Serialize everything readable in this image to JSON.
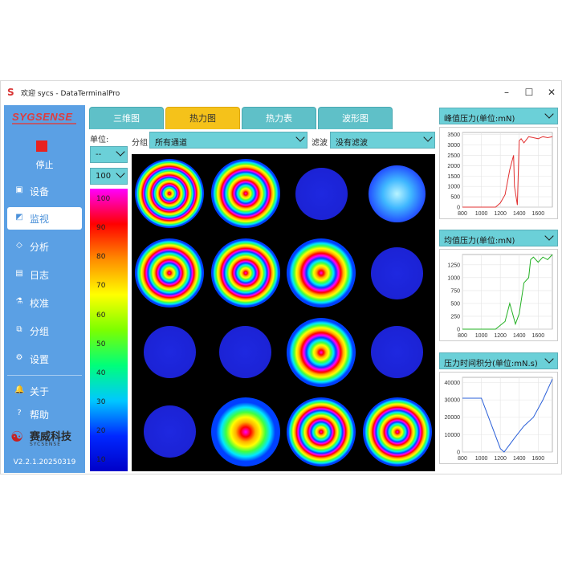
{
  "window": {
    "title": "欢迎 sycs - DataTerminalPro",
    "controls": [
      "–",
      "☐",
      "✕"
    ]
  },
  "sidebar": {
    "logo": "SYGSENSE",
    "stop_label": "停止",
    "items": [
      {
        "label": "设备",
        "icon": "device-icon"
      },
      {
        "label": "监视",
        "icon": "monitor-icon"
      },
      {
        "label": "分析",
        "icon": "analysis-icon"
      },
      {
        "label": "日志",
        "icon": "log-icon"
      },
      {
        "label": "校准",
        "icon": "calibrate-icon"
      },
      {
        "label": "分组",
        "icon": "group-icon"
      },
      {
        "label": "设置",
        "icon": "settings-icon"
      },
      {
        "label": "关于",
        "icon": "about-icon"
      },
      {
        "label": "帮助",
        "icon": "help-icon"
      }
    ],
    "active_item": "监视",
    "brand_cn": "赛威科技",
    "brand_en": "SYCSENSE",
    "version": "V2.2.1.20250319"
  },
  "tabs": [
    {
      "label": "三维图"
    },
    {
      "label": "热力图"
    },
    {
      "label": "热力表"
    },
    {
      "label": "波形图"
    }
  ],
  "active_tab": "热力图",
  "controls": {
    "unit_label": "单位:",
    "unit_value": "--",
    "max_value": "100",
    "group_label": "分组",
    "group_value": "所有通道",
    "filter_label": "滤波",
    "filter_value": "没有滤波"
  },
  "colorbar": {
    "ticks": [
      "100",
      "90",
      "80",
      "70",
      "60",
      "50",
      "40",
      "30",
      "20",
      "10"
    ]
  },
  "heatmap": {
    "rows": 4,
    "cols": 4,
    "cells": [
      {
        "level": 0.97
      },
      {
        "level": 0.85
      },
      {
        "level": 0.08
      },
      {
        "level": 0.18
      },
      {
        "level": 0.65
      },
      {
        "level": 0.85
      },
      {
        "level": 0.62
      },
      {
        "level": 0.08
      },
      {
        "level": 0.08
      },
      {
        "level": 0.08
      },
      {
        "level": 0.6
      },
      {
        "level": 0.08
      },
      {
        "level": 0.08
      },
      {
        "level": 0.35
      },
      {
        "level": 0.85
      },
      {
        "level": 0.85
      }
    ]
  },
  "right_panels": [
    {
      "header": "峰值压力(单位:mN)"
    },
    {
      "header": "均值压力(单位:mN)"
    },
    {
      "header": "压力时间积分(单位:mN.s)"
    }
  ],
  "chart_data": [
    {
      "type": "line",
      "title": "峰值压力(单位:mN)",
      "xlim": [
        800,
        1750
      ],
      "ylim": [
        0,
        3600
      ],
      "x_ticks": [
        800,
        1000,
        1200,
        1400,
        1600
      ],
      "y_ticks": [
        0,
        500,
        1000,
        1500,
        2000,
        2500,
        3000,
        3500
      ],
      "series": [
        {
          "color": "#e23030",
          "x": [
            800,
            1150,
            1200,
            1250,
            1300,
            1340,
            1350,
            1380,
            1400,
            1420,
            1450,
            1500,
            1550,
            1600,
            1650,
            1700,
            1750
          ],
          "y": [
            0,
            0,
            200,
            600,
            1800,
            2500,
            1000,
            100,
            3200,
            3300,
            3100,
            3400,
            3350,
            3300,
            3400,
            3350,
            3400
          ]
        }
      ]
    },
    {
      "type": "line",
      "title": "均值压力(单位:mN)",
      "xlim": [
        800,
        1750
      ],
      "ylim": [
        0,
        1450
      ],
      "x_ticks": [
        800,
        1000,
        1200,
        1400,
        1600
      ],
      "y_ticks": [
        0,
        250,
        500,
        750,
        1000,
        1250
      ],
      "series": [
        {
          "color": "#22b022",
          "x": [
            800,
            1150,
            1250,
            1300,
            1330,
            1360,
            1400,
            1450,
            1500,
            1520,
            1550,
            1600,
            1650,
            1700,
            1750
          ],
          "y": [
            0,
            0,
            150,
            500,
            300,
            100,
            300,
            900,
            1000,
            1350,
            1400,
            1300,
            1400,
            1350,
            1450
          ]
        }
      ]
    },
    {
      "type": "line",
      "title": "压力时间积分(单位:mN.s)",
      "xlim": [
        800,
        1750
      ],
      "ylim": [
        0,
        43000
      ],
      "x_ticks": [
        800,
        1000,
        1200,
        1400,
        1600
      ],
      "y_ticks": [
        0,
        10000,
        20000,
        30000,
        40000
      ],
      "series": [
        {
          "color": "#2a5fd8",
          "x": [
            800,
            1000,
            1200,
            1240,
            1350,
            1450,
            1550,
            1650,
            1750
          ],
          "y": [
            31000,
            31000,
            2000,
            0,
            8000,
            15000,
            20000,
            30000,
            42000
          ]
        }
      ]
    }
  ]
}
